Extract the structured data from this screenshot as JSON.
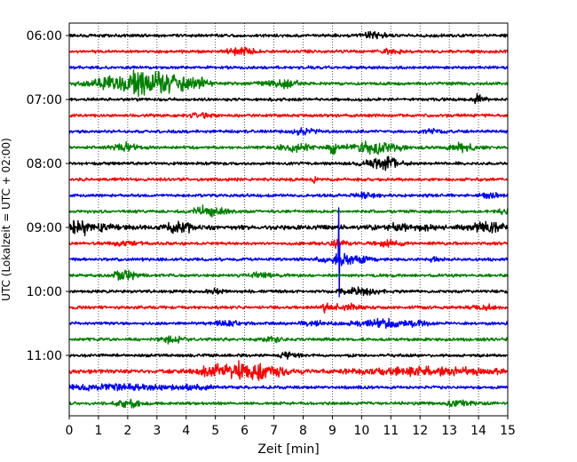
{
  "chart_data": {
    "type": "line",
    "title": "",
    "xlabel": "Zeit  [min]",
    "ylabel": "UTC (Lokalzeit = UTC + 02:00)",
    "xlim": [
      0,
      15
    ],
    "x_ticks": [
      "0",
      "1",
      "2",
      "3",
      "4",
      "5",
      "6",
      "7",
      "8",
      "9",
      "10",
      "11",
      "12",
      "13",
      "14",
      "15"
    ],
    "y_ticks": [
      "06:00",
      "07:00",
      "08:00",
      "09:00",
      "10:00",
      "11:00"
    ],
    "grid": "vertical dotted at each minute",
    "trace_interval_min": 15,
    "color_cycle": [
      "#000000",
      "#ff0000",
      "#0000ff",
      "#008000"
    ],
    "series": [
      {
        "start": "06:00",
        "color": "#000000",
        "amp": 2.0,
        "events": [
          {
            "t": 10.45,
            "a": 5,
            "w": 0.35
          }
        ]
      },
      {
        "start": "06:15",
        "color": "#ff0000",
        "amp": 2.0,
        "events": [
          {
            "t": 5.9,
            "a": 4,
            "w": 0.5
          },
          {
            "t": 11.0,
            "a": 2.5,
            "w": 0.4
          }
        ]
      },
      {
        "start": "06:30",
        "color": "#0000ff",
        "amp": 2.0,
        "events": []
      },
      {
        "start": "06:45",
        "color": "#008000",
        "amp": 2.0,
        "events": [
          {
            "t": 2.45,
            "a": 16,
            "w": 1.3
          },
          {
            "t": 4.3,
            "a": 5,
            "w": 0.6
          },
          {
            "t": 7.3,
            "a": 4,
            "w": 0.6
          }
        ]
      },
      {
        "start": "07:00",
        "color": "#000000",
        "amp": 2.0,
        "events": [
          {
            "t": 14.0,
            "a": 6,
            "w": 0.2
          }
        ]
      },
      {
        "start": "07:15",
        "color": "#ff0000",
        "amp": 2.0,
        "events": [
          {
            "t": 4.5,
            "a": 2.5,
            "w": 0.4
          }
        ]
      },
      {
        "start": "07:30",
        "color": "#0000ff",
        "amp": 2.0,
        "events": [
          {
            "t": 8.0,
            "a": 3,
            "w": 0.5
          },
          {
            "t": 12.4,
            "a": 2.5,
            "w": 0.4
          }
        ]
      },
      {
        "start": "07:45",
        "color": "#008000",
        "amp": 2.0,
        "events": [
          {
            "t": 1.9,
            "a": 5,
            "w": 0.4
          },
          {
            "t": 7.7,
            "a": 5,
            "w": 0.5
          },
          {
            "t": 9.0,
            "a": 8,
            "w": 0.15
          },
          {
            "t": 10.4,
            "a": 7,
            "w": 0.9
          },
          {
            "t": 13.4,
            "a": 5,
            "w": 0.4
          }
        ]
      },
      {
        "start": "08:00",
        "color": "#000000",
        "amp": 2.0,
        "events": [
          {
            "t": 10.8,
            "a": 7,
            "w": 0.6
          }
        ]
      },
      {
        "start": "08:15",
        "color": "#ff0000",
        "amp": 2.0,
        "events": [
          {
            "t": 8.4,
            "a": 4,
            "w": 0.1
          }
        ]
      },
      {
        "start": "08:30",
        "color": "#0000ff",
        "amp": 2.0,
        "events": [
          {
            "t": 10.1,
            "a": 3,
            "w": 0.4
          },
          {
            "t": 14.5,
            "a": 2.5,
            "w": 0.4
          }
        ]
      },
      {
        "start": "08:45",
        "color": "#008000",
        "amp": 2.0,
        "events": [
          {
            "t": 4.8,
            "a": 7,
            "w": 0.5
          },
          {
            "t": 14.9,
            "a": 6,
            "w": 0.2
          }
        ]
      },
      {
        "start": "09:00",
        "color": "#000000",
        "amp": 3.0,
        "events": [
          {
            "t": 0.3,
            "a": 8,
            "w": 0.9
          },
          {
            "t": 3.8,
            "a": 5,
            "w": 0.6
          },
          {
            "t": 11.4,
            "a": 4,
            "w": 0.8
          },
          {
            "t": 14.3,
            "a": 5,
            "w": 0.6
          }
        ]
      },
      {
        "start": "09:15",
        "color": "#ff0000",
        "amp": 2.0,
        "events": [
          {
            "t": 2.0,
            "a": 3,
            "w": 0.4
          },
          {
            "t": 9.2,
            "a": 4,
            "w": 0.3
          },
          {
            "t": 11.0,
            "a": 3,
            "w": 0.5
          }
        ]
      },
      {
        "start": "09:30",
        "color": "#0000ff",
        "amp": 2.0,
        "spike": {
          "t": 9.22,
          "up": 58,
          "down": 42
        },
        "events": [
          {
            "t": 9.4,
            "a": 7,
            "w": 0.7
          },
          {
            "t": 12.5,
            "a": 3,
            "w": 0.15
          }
        ]
      },
      {
        "start": "09:45",
        "color": "#008000",
        "amp": 2.0,
        "events": [
          {
            "t": 1.9,
            "a": 6,
            "w": 0.4
          },
          {
            "t": 6.5,
            "a": 3,
            "w": 0.5
          }
        ]
      },
      {
        "start": "10:00",
        "color": "#000000",
        "amp": 2.0,
        "events": [
          {
            "t": 9.9,
            "a": 4,
            "w": 0.6
          },
          {
            "t": 5.0,
            "a": 2.5,
            "w": 0.3
          }
        ]
      },
      {
        "start": "10:15",
        "color": "#ff0000",
        "amp": 2.0,
        "events": [
          {
            "t": 8.75,
            "a": 7,
            "w": 0.1
          },
          {
            "t": 9.5,
            "a": 4,
            "w": 0.5
          },
          {
            "t": 14.3,
            "a": 3,
            "w": 0.4
          }
        ]
      },
      {
        "start": "10:30",
        "color": "#0000ff",
        "amp": 2.0,
        "events": [
          {
            "t": 10.9,
            "a": 4,
            "w": 1.3
          },
          {
            "t": 5.4,
            "a": 2.5,
            "w": 0.4
          },
          {
            "t": 8.3,
            "a": 2.5,
            "w": 0.4
          }
        ]
      },
      {
        "start": "10:45",
        "color": "#008000",
        "amp": 2.0,
        "events": [
          {
            "t": 3.5,
            "a": 4,
            "w": 0.4
          },
          {
            "t": 7.0,
            "a": 2.5,
            "w": 0.4
          }
        ]
      },
      {
        "start": "11:00",
        "color": "#000000",
        "amp": 2.0,
        "events": [
          {
            "t": 7.5,
            "a": 2.5,
            "w": 0.4
          }
        ]
      },
      {
        "start": "11:15",
        "color": "#ff0000",
        "amp": 2.5,
        "events": [
          {
            "t": 6.1,
            "a": 11,
            "w": 1.2
          },
          {
            "t": 12.5,
            "a": 4,
            "w": 2.5
          },
          {
            "t": 4.7,
            "a": 3,
            "w": 0.5
          }
        ]
      },
      {
        "start": "11:30",
        "color": "#0000ff",
        "amp": 2.0,
        "events": [
          {
            "t": 1.5,
            "a": 3,
            "w": 2.0
          },
          {
            "t": 4.3,
            "a": 3,
            "w": 0.6
          }
        ]
      },
      {
        "start": "11:45",
        "color": "#008000",
        "amp": 2.0,
        "events": [
          {
            "t": 2.1,
            "a": 5,
            "w": 0.4
          },
          {
            "t": 13.3,
            "a": 4,
            "w": 0.4
          }
        ]
      }
    ]
  }
}
